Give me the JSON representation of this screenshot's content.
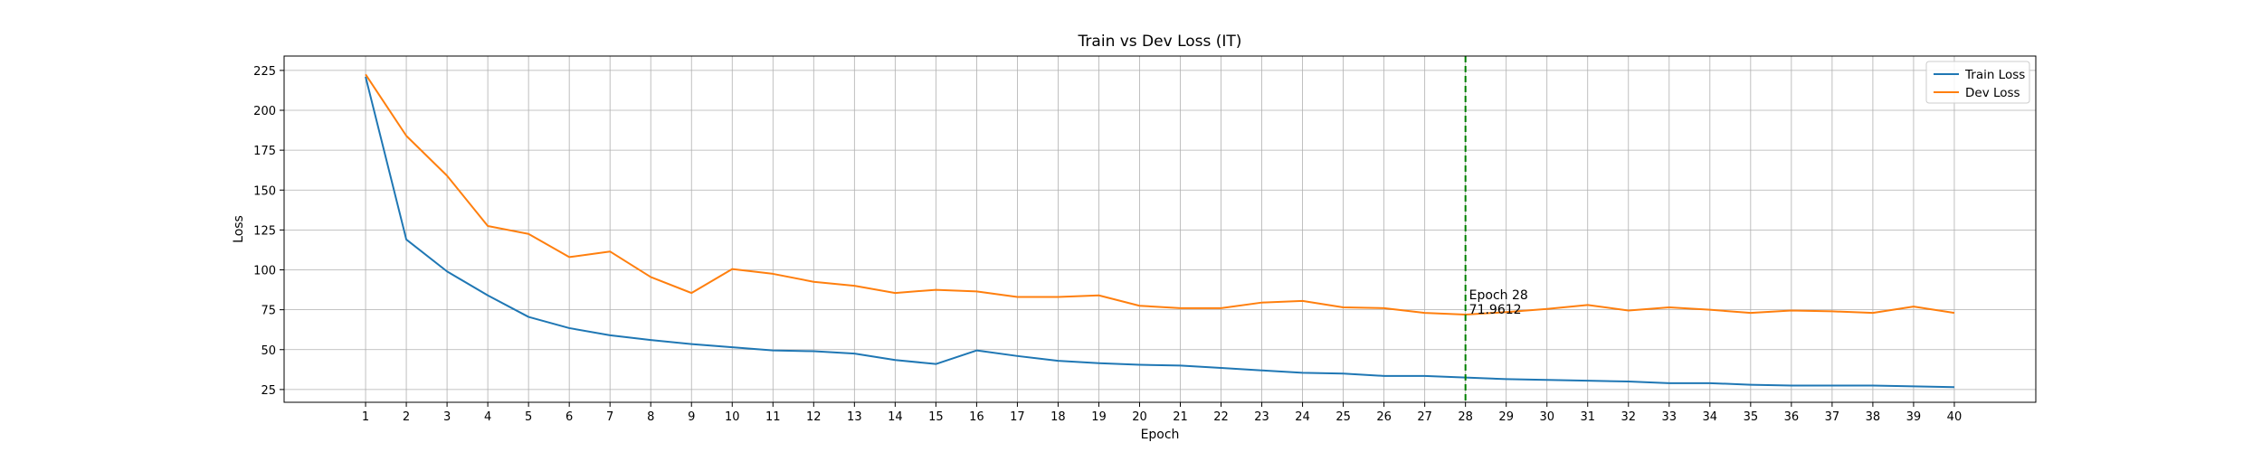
{
  "chart_data": {
    "type": "line",
    "title": "Train vs Dev Loss (IT)",
    "xlabel": "Epoch",
    "ylabel": "Loss",
    "x": [
      1,
      2,
      3,
      4,
      5,
      6,
      7,
      8,
      9,
      10,
      11,
      12,
      13,
      14,
      15,
      16,
      17,
      18,
      19,
      20,
      21,
      22,
      23,
      24,
      25,
      26,
      27,
      28,
      29,
      30,
      31,
      32,
      33,
      34,
      35,
      36,
      37,
      38,
      39,
      40
    ],
    "xlim": [
      -1,
      42
    ],
    "ylim": [
      17,
      234
    ],
    "yticks": [
      25,
      50,
      75,
      100,
      125,
      150,
      175,
      200,
      225
    ],
    "grid": true,
    "legend_position": "top-right",
    "series": [
      {
        "name": "Train Loss",
        "color": "#1f77b4",
        "values": [
          221,
          119,
          99,
          84,
          70.5,
          63.5,
          59,
          56,
          53.5,
          51.5,
          49.5,
          49,
          47.5,
          43.5,
          41,
          49.5,
          46,
          43,
          41.5,
          40.5,
          40,
          38.5,
          37,
          35.5,
          35,
          33.5,
          33.5,
          32.5,
          31.5,
          31,
          30.5,
          30,
          29,
          29,
          28,
          27.5,
          27.5,
          27.5,
          27,
          26.5
        ]
      },
      {
        "name": "Dev Loss",
        "color": "#ff7f0e",
        "values": [
          222.5,
          184,
          159,
          127.5,
          122.5,
          108,
          111.5,
          95.5,
          85.5,
          100.5,
          97.5,
          92.5,
          90,
          85.5,
          87.5,
          86.5,
          83,
          83,
          84,
          77.5,
          76,
          76,
          79.5,
          80.5,
          76.5,
          76,
          73,
          71.9612,
          73.5,
          75.5,
          78,
          74.5,
          76.5,
          75,
          73,
          74.5,
          74,
          73,
          77,
          73
        ]
      }
    ],
    "marker": {
      "epoch": 28,
      "color": "#008000",
      "label_line1": "Epoch 28",
      "label_line2": "71.9612"
    }
  }
}
